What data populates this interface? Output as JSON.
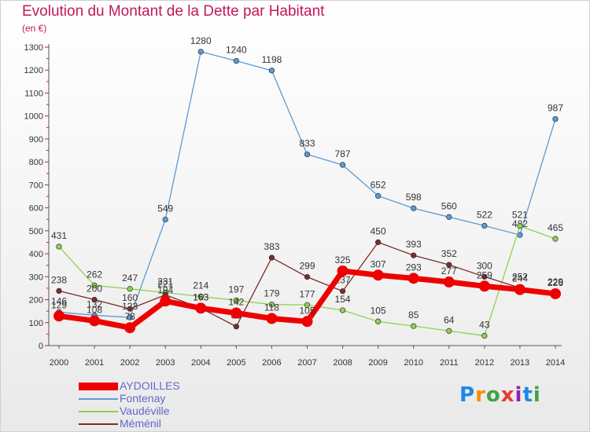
{
  "header": {
    "title": "Evolution du Montant de la Dette par Habitant",
    "unit": "(en €)"
  },
  "logo": {
    "text": "Proxiti",
    "colors": [
      "#1e88e5",
      "#fb8c00",
      "#43a047",
      "#e53935",
      "#8e24aa",
      "#1e88e5",
      "#43a047"
    ]
  },
  "chart_data": {
    "type": "line",
    "title": "Evolution du Montant de la Dette par Habitant",
    "ylabel": "(en €)",
    "xlabel": "",
    "ylim": [
      0,
      1300
    ],
    "yticks": [
      0,
      100,
      200,
      300,
      400,
      500,
      600,
      700,
      800,
      900,
      1000,
      1100,
      1200,
      1300
    ],
    "grid": false,
    "legend_position": "bottom-left",
    "x": [
      "2000",
      "2001",
      "2002",
      "2003",
      "2004",
      "2005",
      "2006",
      "2007",
      "2008",
      "2009",
      "2010",
      "2011",
      "2012",
      "2013",
      "2014"
    ],
    "series": [
      {
        "name": "AYDOILLES",
        "color": "#ee0000",
        "emphasis": true,
        "values": [
          129,
          108,
          78,
          194,
          163,
          142,
          118,
          105,
          325,
          307,
          293,
          277,
          259,
          244,
          226
        ]
      },
      {
        "name": "Fontenay",
        "color": "#5b9bd5",
        "values": [
          146,
          132,
          123,
          549,
          1280,
          1240,
          1198,
          833,
          787,
          652,
          598,
          560,
          522,
          482,
          987
        ]
      },
      {
        "name": "Vaudéville",
        "color": "#8fd14f",
        "values": [
          431,
          262,
          247,
          231,
          214,
          197,
          179,
          177,
          154,
          105,
          85,
          64,
          43,
          521,
          465
        ]
      },
      {
        "name": "Méménil",
        "color": "#7b2c2c",
        "values": [
          238,
          200,
          160,
          221,
          163,
          83,
          383,
          299,
          237,
          450,
          393,
          352,
          300,
          252,
          229
        ]
      }
    ]
  }
}
